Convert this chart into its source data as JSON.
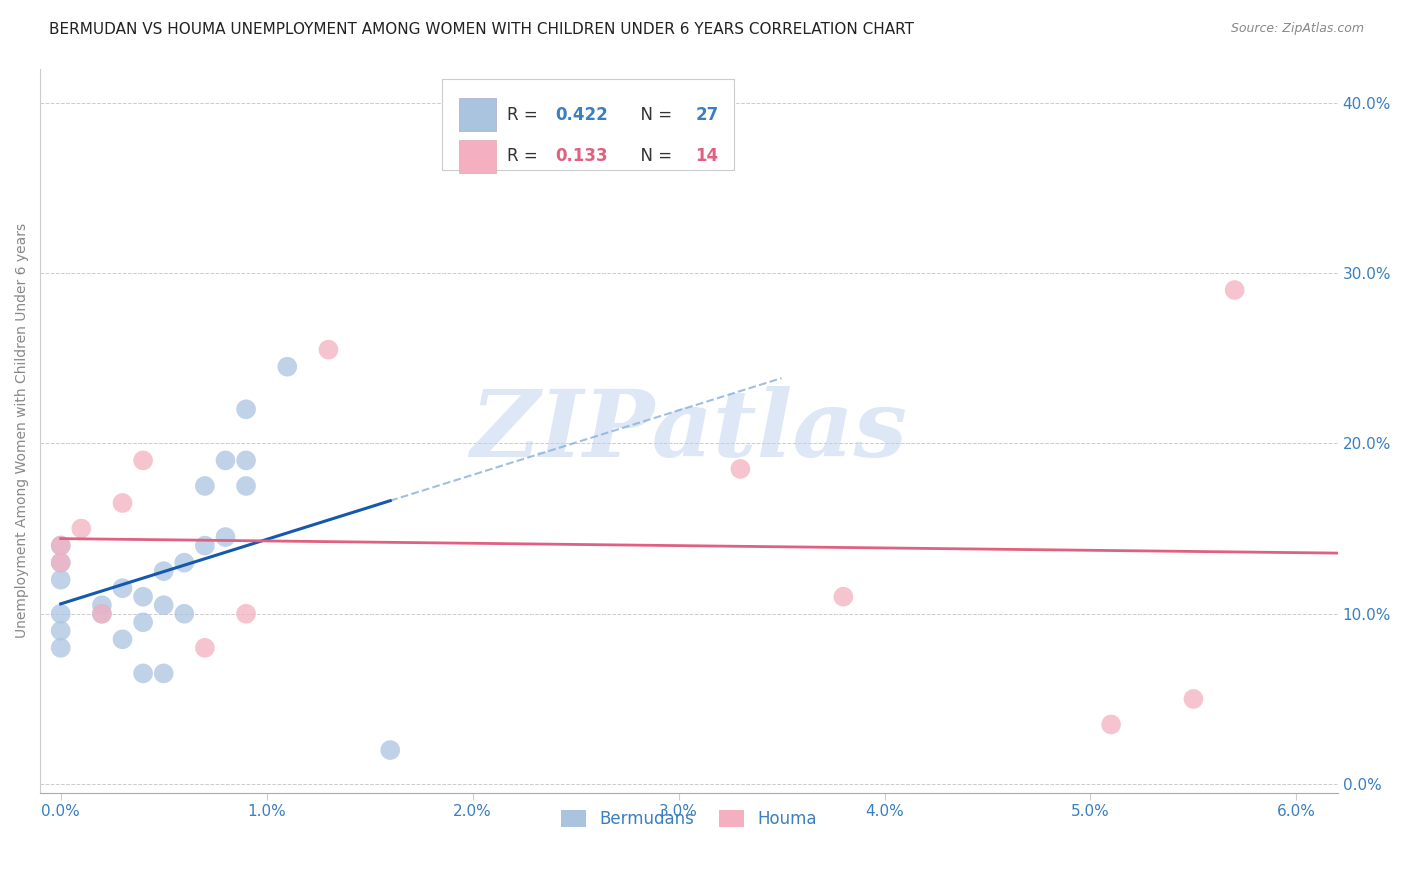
{
  "title": "BERMUDAN VS HOUMA UNEMPLOYMENT AMONG WOMEN WITH CHILDREN UNDER 6 YEARS CORRELATION CHART",
  "source": "Source: ZipAtlas.com",
  "ylabel": "Unemployment Among Women with Children Under 6 years",
  "xlim": [
    -0.001,
    0.062
  ],
  "ylim": [
    -0.005,
    0.42
  ],
  "xticks": [
    0.0,
    0.01,
    0.02,
    0.03,
    0.04,
    0.05,
    0.06
  ],
  "yticks": [
    0.0,
    0.1,
    0.2,
    0.3,
    0.4
  ],
  "legend_labels": [
    "Bermudans",
    "Houma"
  ],
  "bermudans_R": "0.422",
  "bermudans_N": "27",
  "houma_R": "0.133",
  "houma_N": "14",
  "bermudans_color": "#aac4e0",
  "bermudans_line_color": "#1558b0",
  "houma_color": "#f4b0c0",
  "houma_line_color": "#e06080",
  "text_color": "#3a7fc1",
  "bermudans_x": [
    0.0,
    0.0,
    0.0,
    0.0,
    0.0,
    0.0,
    0.002,
    0.002,
    0.003,
    0.003,
    0.004,
    0.004,
    0.004,
    0.005,
    0.005,
    0.005,
    0.006,
    0.006,
    0.007,
    0.007,
    0.008,
    0.008,
    0.009,
    0.009,
    0.009,
    0.011,
    0.016
  ],
  "bermudans_y": [
    0.08,
    0.09,
    0.1,
    0.12,
    0.13,
    0.14,
    0.1,
    0.105,
    0.085,
    0.115,
    0.065,
    0.095,
    0.11,
    0.065,
    0.105,
    0.125,
    0.1,
    0.13,
    0.14,
    0.175,
    0.145,
    0.19,
    0.175,
    0.19,
    0.22,
    0.245,
    0.02
  ],
  "houma_x": [
    0.0,
    0.0,
    0.001,
    0.002,
    0.003,
    0.004,
    0.007,
    0.009,
    0.013,
    0.033,
    0.038,
    0.051,
    0.055,
    0.057
  ],
  "houma_y": [
    0.13,
    0.14,
    0.15,
    0.1,
    0.165,
    0.19,
    0.08,
    0.1,
    0.255,
    0.185,
    0.11,
    0.035,
    0.05,
    0.29
  ],
  "watermark_text": "ZIPatlas",
  "watermark_color": "#c8d8f0",
  "figsize": [
    14.06,
    8.92
  ],
  "dpi": 100
}
